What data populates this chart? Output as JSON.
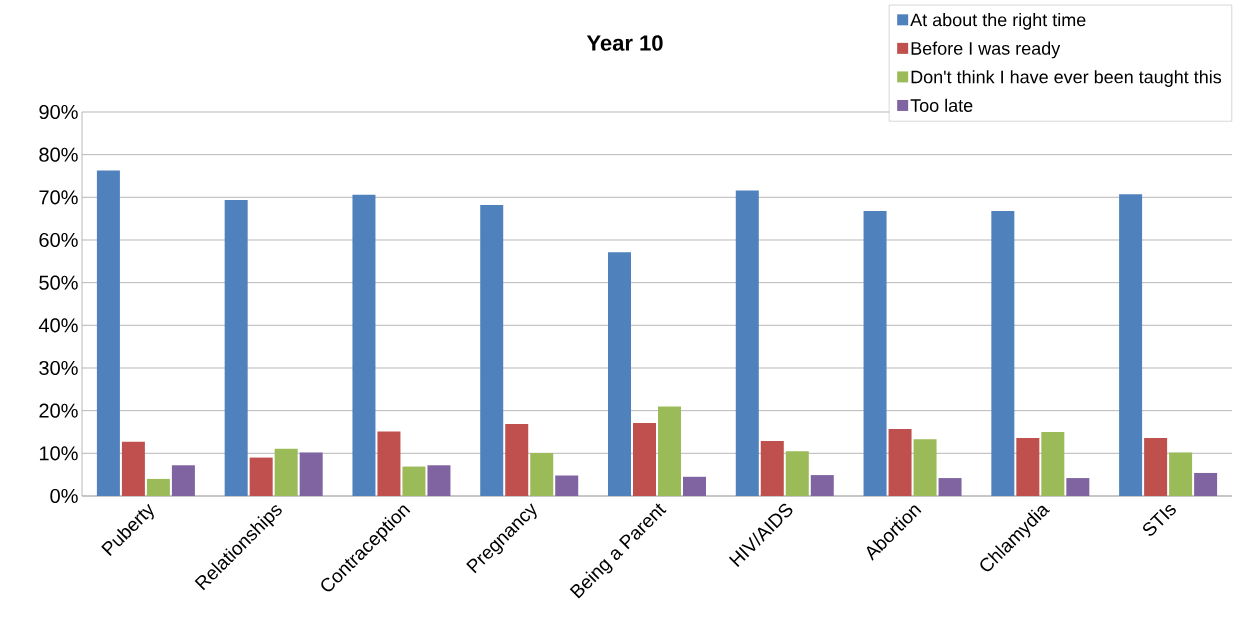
{
  "chart_data": {
    "type": "bar",
    "title": "Year 10",
    "categories": [
      "Puberty",
      "Relationships",
      "Contraception",
      "Pregnancy",
      "Being a Parent",
      "HIV/AIDS",
      "Abortion",
      "Chlamydia",
      "STIs"
    ],
    "series": [
      {
        "name": "At about the right time",
        "color": "#4f81bd",
        "values": [
          76.3,
          69.4,
          70.6,
          68.2,
          57.1,
          71.6,
          66.8,
          66.8,
          70.7
        ]
      },
      {
        "name": "Before I was ready",
        "color": "#c0504d",
        "values": [
          12.7,
          9.0,
          15.1,
          16.9,
          17.1,
          12.9,
          15.7,
          13.6,
          13.6
        ]
      },
      {
        "name": "Don't think I have ever been taught this",
        "color": "#9bbb59",
        "values": [
          4.0,
          11.1,
          6.9,
          10.1,
          21.0,
          10.5,
          13.3,
          15.0,
          10.2
        ]
      },
      {
        "name": "Too late",
        "color": "#8064a2",
        "values": [
          7.2,
          10.2,
          7.2,
          4.8,
          4.5,
          4.9,
          4.2,
          4.2,
          5.4
        ]
      }
    ],
    "ylim": [
      0,
      90
    ],
    "yticks": [
      {
        "value": 0,
        "label": "0%"
      },
      {
        "value": 10,
        "label": "10%"
      },
      {
        "value": 20,
        "label": "20%"
      },
      {
        "value": 30,
        "label": "30%"
      },
      {
        "value": 40,
        "label": "40%"
      },
      {
        "value": 50,
        "label": "50%"
      },
      {
        "value": 60,
        "label": "60%"
      },
      {
        "value": 70,
        "label": "70%"
      },
      {
        "value": 80,
        "label": "80%"
      },
      {
        "value": 90,
        "label": "90%"
      }
    ],
    "grid": "y",
    "legend": "top right"
  }
}
